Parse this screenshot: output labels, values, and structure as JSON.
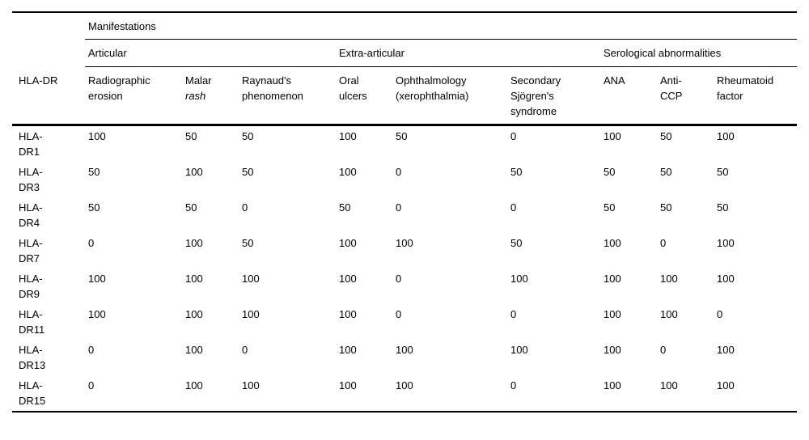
{
  "chart_data": {
    "type": "table",
    "title": "",
    "id_column_header": "HLA-DR",
    "spanner": "Manifestations",
    "groups": [
      {
        "label": "Articular",
        "columns": [
          "Radiographic erosion",
          "Malar rash",
          "Raynaud's phenomenon"
        ]
      },
      {
        "label": "Extra-articular",
        "columns": [
          "Oral ulcers",
          "Ophthalmology (xerophthalmia)",
          "Secondary Sjögren's syndrome"
        ]
      },
      {
        "label": "Serological abnormalities",
        "columns": [
          "ANA",
          "Anti-CCP",
          "Rheumatoid factor"
        ]
      }
    ],
    "rows": [
      {
        "id": "HLA-DR1",
        "values": [
          100,
          50,
          50,
          100,
          50,
          0,
          100,
          50,
          100
        ]
      },
      {
        "id": "HLA-DR3",
        "values": [
          50,
          100,
          50,
          100,
          0,
          50,
          50,
          50,
          50
        ]
      },
      {
        "id": "HLA-DR4",
        "values": [
          50,
          50,
          0,
          50,
          0,
          0,
          50,
          50,
          50
        ]
      },
      {
        "id": "HLA-DR7",
        "values": [
          0,
          100,
          50,
          100,
          100,
          50,
          100,
          0,
          100
        ]
      },
      {
        "id": "HLA-DR9",
        "values": [
          100,
          100,
          100,
          100,
          0,
          100,
          100,
          100,
          100
        ]
      },
      {
        "id": "HLA-DR11",
        "values": [
          100,
          100,
          100,
          100,
          0,
          0,
          100,
          100,
          0
        ]
      },
      {
        "id": "HLA-DR13",
        "values": [
          0,
          100,
          0,
          100,
          100,
          100,
          100,
          0,
          100
        ]
      },
      {
        "id": "HLA-DR15",
        "values": [
          0,
          100,
          100,
          100,
          100,
          0,
          100,
          100,
          100
        ]
      }
    ]
  },
  "table": {
    "header": {
      "id_label": "HLA-DR",
      "spanner": "Manifestations",
      "groups": [
        {
          "label": "Articular"
        },
        {
          "label": "Extra-articular"
        },
        {
          "label": "Serological abnormalities"
        }
      ],
      "columns": [
        {
          "label": "Radiographic\nerosion"
        },
        {
          "label": "Malar\n",
          "italic": "rash"
        },
        {
          "label": "Raynaud's\nphenomenon"
        },
        {
          "label": "Oral\nulcers"
        },
        {
          "label": "Ophthalmology\n(xerophthalmia)"
        },
        {
          "label": "Secondary\nSjögren's\nsyndrome"
        },
        {
          "label": "ANA"
        },
        {
          "label": "Anti-\nCCP"
        },
        {
          "label": "Rheumatoid\nfactor"
        }
      ]
    },
    "rows": [
      {
        "id": "HLA-\nDR1",
        "values": [
          100,
          50,
          50,
          100,
          50,
          0,
          100,
          50,
          100
        ]
      },
      {
        "id": "HLA-\nDR3",
        "values": [
          50,
          100,
          50,
          100,
          0,
          50,
          50,
          50,
          50
        ]
      },
      {
        "id": "HLA-\nDR4",
        "values": [
          50,
          50,
          0,
          50,
          0,
          0,
          50,
          50,
          50
        ]
      },
      {
        "id": "HLA-\nDR7",
        "values": [
          0,
          100,
          50,
          100,
          100,
          50,
          100,
          0,
          100
        ]
      },
      {
        "id": "HLA-\nDR9",
        "values": [
          100,
          100,
          100,
          100,
          0,
          100,
          100,
          100,
          100
        ]
      },
      {
        "id": "HLA-\nDR11",
        "values": [
          100,
          100,
          100,
          100,
          0,
          0,
          100,
          100,
          0
        ]
      },
      {
        "id": "HLA-\nDR13",
        "values": [
          0,
          100,
          0,
          100,
          100,
          100,
          100,
          0,
          100
        ]
      },
      {
        "id": "HLA-\nDR15",
        "values": [
          0,
          100,
          100,
          100,
          100,
          0,
          100,
          100,
          100
        ]
      }
    ]
  }
}
